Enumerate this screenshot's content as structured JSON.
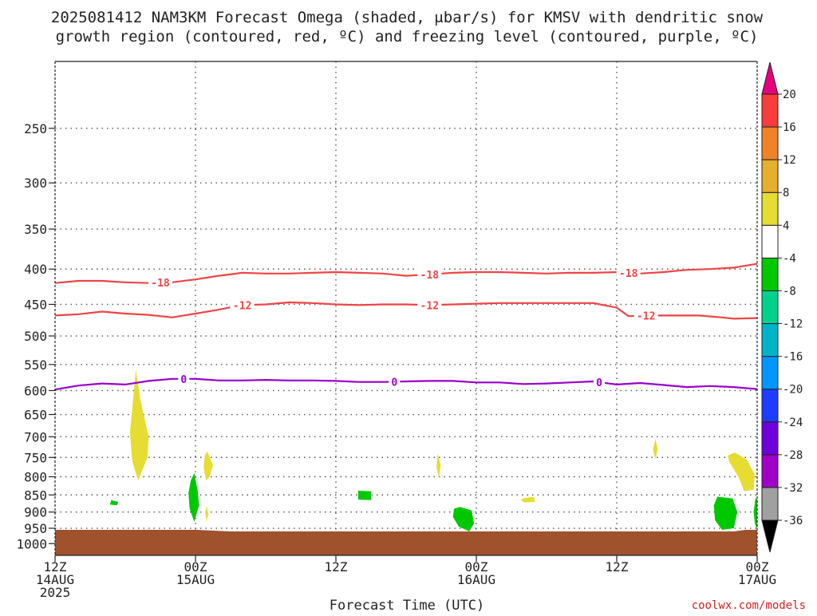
{
  "title": {
    "line1": "2025081412 NAM3KM Forecast Omega (shaded, μbar/s) for KMSV with dendritic snow",
    "line2": "growth region (contoured, red, ºC) and freezing level (contoured, purple, ºC)"
  },
  "credit": "coolwx.com/models",
  "chart_data": {
    "type": "time-height",
    "x_axis": {
      "title": "Forecast Time (UTC)",
      "range_hours": [
        0,
        60
      ],
      "ticks": [
        {
          "hour": 0,
          "lines": [
            "12Z",
            "14AUG",
            "2025"
          ]
        },
        {
          "hour": 12,
          "lines": [
            "00Z",
            "15AUG"
          ]
        },
        {
          "hour": 24,
          "lines": [
            "12Z"
          ]
        },
        {
          "hour": 36,
          "lines": [
            "00Z",
            "16AUG"
          ]
        },
        {
          "hour": 48,
          "lines": [
            "12Z"
          ]
        },
        {
          "hour": 60,
          "lines": [
            "00Z",
            "17AUG"
          ]
        }
      ]
    },
    "y_axis": {
      "scale": "log-pressure",
      "unit": "hPa",
      "range": [
        200,
        1040
      ],
      "ticks": [
        250,
        300,
        350,
        400,
        450,
        500,
        550,
        600,
        650,
        700,
        750,
        800,
        850,
        900,
        950,
        1000
      ]
    },
    "grid": "dotted",
    "colorbar": {
      "unit": "μbar/s",
      "levels": [
        -36,
        -32,
        -28,
        -24,
        -20,
        -16,
        -12,
        -8,
        -4,
        4,
        8,
        12,
        16,
        20
      ],
      "colors": [
        "#000000",
        "#a0a0a0",
        "#a000c8",
        "#6e00dc",
        "#1e3cff",
        "#0096ff",
        "#00b4c8",
        "#00d28c",
        "#00c800",
        "#ffffff",
        "#e6dc32",
        "#e6af2d",
        "#f08228",
        "#fa3c3c",
        "#e6007d"
      ]
    },
    "contours": [
      {
        "value": -18,
        "label": "-18",
        "color": "#ee4444",
        "points": [
          [
            0,
            419
          ],
          [
            2,
            416
          ],
          [
            4,
            416
          ],
          [
            6,
            418
          ],
          [
            8,
            419
          ],
          [
            10,
            418
          ],
          [
            12,
            414
          ],
          [
            14,
            409
          ],
          [
            16,
            405
          ],
          [
            18,
            406
          ],
          [
            20,
            406
          ],
          [
            22,
            405
          ],
          [
            24,
            404
          ],
          [
            26,
            405
          ],
          [
            28,
            406
          ],
          [
            30,
            409
          ],
          [
            32,
            407
          ],
          [
            34,
            405
          ],
          [
            36,
            404
          ],
          [
            38,
            404
          ],
          [
            40,
            405
          ],
          [
            42,
            406
          ],
          [
            44,
            405
          ],
          [
            46,
            405
          ],
          [
            48,
            404
          ],
          [
            50,
            406
          ],
          [
            52,
            404
          ],
          [
            54,
            401
          ],
          [
            56,
            400
          ],
          [
            58,
            398
          ],
          [
            60,
            393
          ]
        ],
        "labels_at_hours": [
          9,
          32,
          49
        ]
      },
      {
        "value": -12,
        "label": "-12",
        "color": "#ee4444",
        "points": [
          [
            0,
            467
          ],
          [
            2,
            465
          ],
          [
            4,
            461
          ],
          [
            6,
            464
          ],
          [
            8,
            466
          ],
          [
            10,
            470
          ],
          [
            12,
            464
          ],
          [
            14,
            458
          ],
          [
            16,
            451
          ],
          [
            18,
            450
          ],
          [
            20,
            447
          ],
          [
            22,
            448
          ],
          [
            24,
            450
          ],
          [
            26,
            451
          ],
          [
            28,
            450
          ],
          [
            30,
            450
          ],
          [
            32,
            451
          ],
          [
            34,
            450
          ],
          [
            36,
            449
          ],
          [
            38,
            448
          ],
          [
            40,
            448
          ],
          [
            42,
            448
          ],
          [
            44,
            448
          ],
          [
            46,
            448
          ],
          [
            48,
            455
          ],
          [
            49,
            468
          ],
          [
            51,
            467
          ],
          [
            53,
            467
          ],
          [
            55,
            467
          ],
          [
            57,
            470
          ],
          [
            58,
            472
          ],
          [
            60,
            471
          ]
        ],
        "labels_at_hours": [
          16,
          32,
          50.5
        ]
      },
      {
        "value": 0,
        "label": "0",
        "color": "#9900cc",
        "points": [
          [
            0,
            598
          ],
          [
            2,
            590
          ],
          [
            4,
            586
          ],
          [
            6,
            588
          ],
          [
            8,
            581
          ],
          [
            10,
            577
          ],
          [
            12,
            577
          ],
          [
            14,
            580
          ],
          [
            16,
            580
          ],
          [
            18,
            579
          ],
          [
            20,
            580
          ],
          [
            22,
            580
          ],
          [
            24,
            581
          ],
          [
            26,
            583
          ],
          [
            28,
            583
          ],
          [
            30,
            582
          ],
          [
            32,
            581
          ],
          [
            34,
            581
          ],
          [
            36,
            584
          ],
          [
            38,
            584
          ],
          [
            40,
            587
          ],
          [
            42,
            586
          ],
          [
            44,
            584
          ],
          [
            46,
            582
          ],
          [
            48,
            588
          ],
          [
            50,
            585
          ],
          [
            52,
            589
          ],
          [
            54,
            593
          ],
          [
            56,
            591
          ],
          [
            58,
            593
          ],
          [
            60,
            597
          ]
        ],
        "labels_at_hours": [
          11,
          29,
          46.5
        ]
      }
    ],
    "shaded_regions": [
      {
        "range": "4 to 8",
        "color": "#e6dc32",
        "polygon": [
          [
            6.9,
            560
          ],
          [
            7.3,
            620
          ],
          [
            8,
            700
          ],
          [
            7.9,
            750
          ],
          [
            7.1,
            810
          ],
          [
            6.6,
            760
          ],
          [
            6.4,
            690
          ],
          [
            6.7,
            610
          ]
        ]
      },
      {
        "range": "4 to 8",
        "color": "#e6dc32",
        "polygon": [
          [
            13.0,
            735
          ],
          [
            13.5,
            770
          ],
          [
            13.2,
            800
          ],
          [
            12.9,
            810
          ],
          [
            12.7,
            775
          ],
          [
            12.8,
            745
          ]
        ]
      },
      {
        "range": "4 to 8",
        "color": "#e6dc32",
        "polygon": [
          [
            12.95,
            880
          ],
          [
            13.1,
            905
          ],
          [
            12.95,
            930
          ],
          [
            12.85,
            905
          ]
        ]
      },
      {
        "range": "4 to 8",
        "color": "#e6dc32",
        "polygon": [
          [
            32.7,
            740
          ],
          [
            32.95,
            770
          ],
          [
            32.8,
            805
          ],
          [
            32.6,
            775
          ]
        ]
      },
      {
        "range": "4 to 8",
        "color": "#e6dc32",
        "polygon": [
          [
            40.0,
            860
          ],
          [
            40.9,
            855
          ],
          [
            41.0,
            870
          ],
          [
            40.1,
            872
          ],
          [
            39.8,
            865
          ]
        ]
      },
      {
        "range": "4 to 8",
        "color": "#e6dc32",
        "polygon": [
          [
            51.3,
            705
          ],
          [
            51.5,
            730
          ],
          [
            51.3,
            755
          ],
          [
            51.1,
            730
          ]
        ]
      },
      {
        "range": "4 to 8",
        "color": "#e6dc32",
        "polygon": [
          [
            58.1,
            738
          ],
          [
            59.1,
            755
          ],
          [
            59.8,
            795
          ],
          [
            59.7,
            835
          ],
          [
            58.9,
            840
          ],
          [
            58.4,
            800
          ],
          [
            57.6,
            760
          ],
          [
            57.5,
            745
          ]
        ]
      },
      {
        "range": "-8 to -4",
        "color": "#00c800",
        "polygon": [
          [
            11.9,
            790
          ],
          [
            12.2,
            840
          ],
          [
            12.3,
            880
          ],
          [
            11.9,
            930
          ],
          [
            11.5,
            890
          ],
          [
            11.4,
            845
          ],
          [
            11.6,
            810
          ]
        ]
      },
      {
        "range": "-8 to -4",
        "color": "#00c800",
        "polygon": [
          [
            4.8,
            865
          ],
          [
            5.4,
            870
          ],
          [
            5.3,
            880
          ],
          [
            4.7,
            878
          ]
        ]
      },
      {
        "range": "-8 to -4",
        "color": "#00c800",
        "polygon": [
          [
            25.9,
            838
          ],
          [
            27.0,
            840
          ],
          [
            27.0,
            865
          ],
          [
            25.9,
            863
          ]
        ]
      },
      {
        "range": "-8 to -4",
        "color": "#00c800",
        "polygon": [
          [
            34.6,
            885
          ],
          [
            35.6,
            895
          ],
          [
            35.8,
            935
          ],
          [
            35.4,
            960
          ],
          [
            34.5,
            945
          ],
          [
            34.0,
            915
          ],
          [
            34.1,
            890
          ]
        ]
      },
      {
        "range": "-8 to -4",
        "color": "#00c800",
        "polygon": [
          [
            56.6,
            855
          ],
          [
            57.9,
            860
          ],
          [
            58.3,
            900
          ],
          [
            58.0,
            950
          ],
          [
            57.0,
            955
          ],
          [
            56.4,
            925
          ],
          [
            56.3,
            880
          ]
        ]
      },
      {
        "range": "-8 to -4",
        "color": "#00c800",
        "polygon": [
          [
            59.85,
            860
          ],
          [
            60,
            860
          ],
          [
            60,
            955
          ],
          [
            59.8,
            935
          ],
          [
            59.7,
            900
          ]
        ]
      }
    ],
    "ground": {
      "color": "#a0522d",
      "top_pressure_hpa": 960
    }
  }
}
